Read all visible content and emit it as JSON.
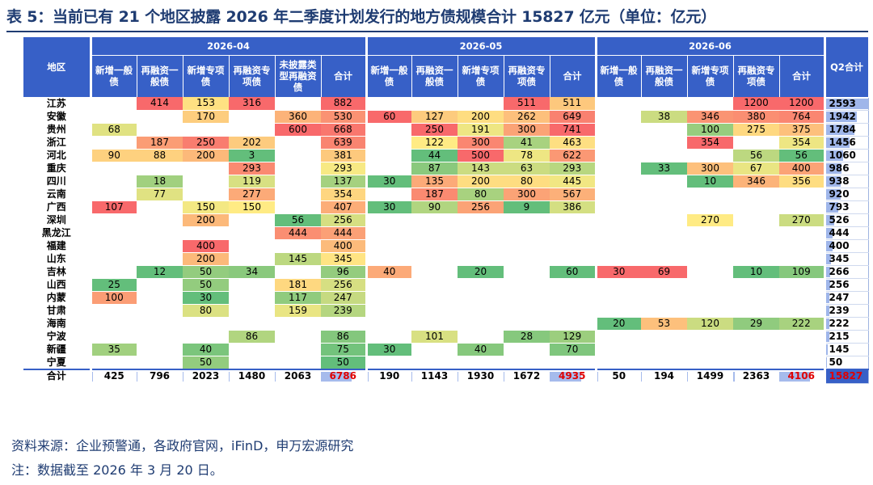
{
  "title": "表 5：当前已有 21 个地区披露 2026 年二季度计划发行的地方债规模合计 15827 亿元（单位：亿元）",
  "header": {
    "region_label": "地区",
    "q2_label": "Q2合计",
    "months": [
      {
        "label": "2026-04",
        "cols": [
          "新增一般债",
          "再融资一般债",
          "新增专项债",
          "再融资专项债",
          "未披露类型再融资债",
          "合计"
        ]
      },
      {
        "label": "2026-05",
        "cols": [
          "新增一般债",
          "再融资一般债",
          "新增专项债",
          "再融资专项债",
          "合计"
        ]
      },
      {
        "label": "2026-06",
        "cols": [
          "新增一般债",
          "再融资一般债",
          "新增专项债",
          "再融资专项债",
          "合计"
        ]
      }
    ]
  },
  "rows": [
    {
      "region": "江苏",
      "vals": [
        "",
        "414",
        "153",
        "316",
        "",
        "882",
        "",
        "",
        "",
        "511",
        "511",
        "",
        "",
        "",
        "1200",
        "1200"
      ],
      "q2": "2593"
    },
    {
      "region": "安徽",
      "vals": [
        "",
        "",
        "170",
        "",
        "360",
        "530",
        "60",
        "127",
        "200",
        "262",
        "649",
        "",
        "38",
        "346",
        "380",
        "764"
      ],
      "q2": "1942"
    },
    {
      "region": "贵州",
      "vals": [
        "68",
        "",
        "",
        "",
        "600",
        "668",
        "",
        "250",
        "191",
        "300",
        "741",
        "",
        "",
        "100",
        "275",
        "375"
      ],
      "q2": "1784"
    },
    {
      "region": "浙江",
      "vals": [
        "",
        "187",
        "250",
        "202",
        "",
        "639",
        "",
        "122",
        "300",
        "41",
        "463",
        "",
        "",
        "354",
        "",
        "354"
      ],
      "q2": "1456"
    },
    {
      "region": "河北",
      "vals": [
        "90",
        "88",
        "200",
        "3",
        "",
        "381",
        "",
        "44",
        "500",
        "78",
        "622",
        "",
        "",
        "",
        "56",
        "56"
      ],
      "q2": "1060"
    },
    {
      "region": "重庆",
      "vals": [
        "",
        "",
        "",
        "293",
        "",
        "293",
        "",
        "87",
        "143",
        "63",
        "293",
        "",
        "33",
        "300",
        "67",
        "400"
      ],
      "q2": "986"
    },
    {
      "region": "四川",
      "vals": [
        "",
        "18",
        "",
        "119",
        "",
        "137",
        "30",
        "135",
        "200",
        "80",
        "445",
        "",
        "",
        "10",
        "346",
        "356"
      ],
      "q2": "938"
    },
    {
      "region": "云南",
      "vals": [
        "",
        "77",
        "",
        "277",
        "",
        "354",
        "",
        "187",
        "80",
        "300",
        "567",
        "",
        "",
        "",
        "",
        ""
      ],
      "q2": "920"
    },
    {
      "region": "广西",
      "vals": [
        "107",
        "",
        "150",
        "150",
        "",
        "407",
        "30",
        "90",
        "256",
        "9",
        "386",
        "",
        "",
        "",
        "",
        ""
      ],
      "q2": "793"
    },
    {
      "region": "深圳",
      "vals": [
        "",
        "",
        "200",
        "",
        "56",
        "256",
        "",
        "",
        "",
        "",
        "",
        "",
        "",
        "270",
        "",
        "270"
      ],
      "q2": "526"
    },
    {
      "region": "黑龙江",
      "vals": [
        "",
        "",
        "",
        "",
        "444",
        "444",
        "",
        "",
        "",
        "",
        "",
        "",
        "",
        "",
        "",
        ""
      ],
      "q2": "444"
    },
    {
      "region": "福建",
      "vals": [
        "",
        "",
        "400",
        "",
        "",
        "400",
        "",
        "",
        "",
        "",
        "",
        "",
        "",
        "",
        "",
        ""
      ],
      "q2": "400"
    },
    {
      "region": "山东",
      "vals": [
        "",
        "",
        "200",
        "",
        "145",
        "345",
        "",
        "",
        "",
        "",
        "",
        "",
        "",
        "",
        "",
        ""
      ],
      "q2": "345"
    },
    {
      "region": "吉林",
      "vals": [
        "",
        "12",
        "50",
        "34",
        "",
        "96",
        "40",
        "",
        "20",
        "",
        "60",
        "30",
        "69",
        "",
        "10",
        "109"
      ],
      "q2": "266"
    },
    {
      "region": "山西",
      "vals": [
        "25",
        "",
        "50",
        "",
        "181",
        "256",
        "",
        "",
        "",
        "",
        "",
        "",
        "",
        "",
        "",
        ""
      ],
      "q2": "256"
    },
    {
      "region": "内蒙",
      "vals": [
        "100",
        "",
        "30",
        "",
        "117",
        "247",
        "",
        "",
        "",
        "",
        "",
        "",
        "",
        "",
        "",
        ""
      ],
      "q2": "247"
    },
    {
      "region": "甘肃",
      "vals": [
        "",
        "",
        "80",
        "",
        "159",
        "239",
        "",
        "",
        "",
        "",
        "",
        "",
        "",
        "",
        "",
        ""
      ],
      "q2": "239"
    },
    {
      "region": "海南",
      "vals": [
        "",
        "",
        "",
        "",
        "",
        "",
        "",
        "",
        "",
        "",
        "",
        "20",
        "53",
        "120",
        "29",
        "222"
      ],
      "q2": "222"
    },
    {
      "region": "宁波",
      "vals": [
        "",
        "",
        "",
        "86",
        "",
        "86",
        "",
        "101",
        "",
        "28",
        "129",
        "",
        "",
        "",
        "",
        ""
      ],
      "q2": "215"
    },
    {
      "region": "新疆",
      "vals": [
        "35",
        "",
        "40",
        "",
        "",
        "75",
        "30",
        "",
        "40",
        "",
        "70",
        "",
        "",
        "",
        "",
        ""
      ],
      "q2": "145"
    },
    {
      "region": "宁夏",
      "vals": [
        "",
        "",
        "50",
        "",
        "",
        "50",
        "",
        "",
        "",
        "",
        "",
        "",
        "",
        "",
        "",
        ""
      ],
      "q2": "50"
    }
  ],
  "total": {
    "label": "合计",
    "vals": [
      "425",
      "796",
      "2023",
      "1480",
      "2063",
      "6786",
      "190",
      "1143",
      "1930",
      "1672",
      "4935",
      "50",
      "194",
      "1499",
      "2363",
      "4106"
    ],
    "q2": "15827"
  },
  "footer": {
    "source": "资料来源：企业预警通，各政府官网，iFinD，申万宏源研究",
    "note": "注：数据截至 2026 年 3 月 20 日。"
  }
}
